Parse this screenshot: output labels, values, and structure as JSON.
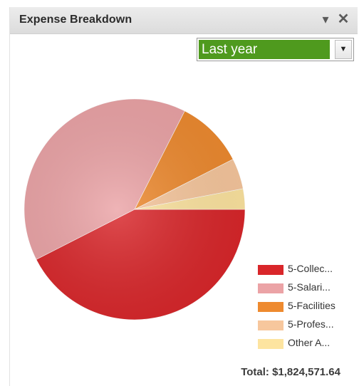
{
  "widget": {
    "title": "Expense Breakdown",
    "collapse_icon": "chevron-down-icon",
    "close_icon": "close-icon"
  },
  "range_select": {
    "value": "Last year",
    "arrow_icon": "dropdown-arrow-icon",
    "highlight_color": "#4f9a1e"
  },
  "chart_data": {
    "type": "pie",
    "labels": [
      "5-Collec...",
      "5-Salari...",
      "5-Facilities",
      "5-Profes...",
      "Other A..."
    ],
    "values": [
      42.5,
      40.0,
      10.0,
      4.5,
      3.0
    ],
    "colors": [
      "#d9262a",
      "#eba3a6",
      "#ee8a2f",
      "#f7c79d",
      "#fde4a0"
    ],
    "start_angle_deg": 0,
    "direction": "clockwise",
    "legend_position": "bottom-right",
    "title": ""
  },
  "total": {
    "label": "Total: $1,824,571.64"
  }
}
